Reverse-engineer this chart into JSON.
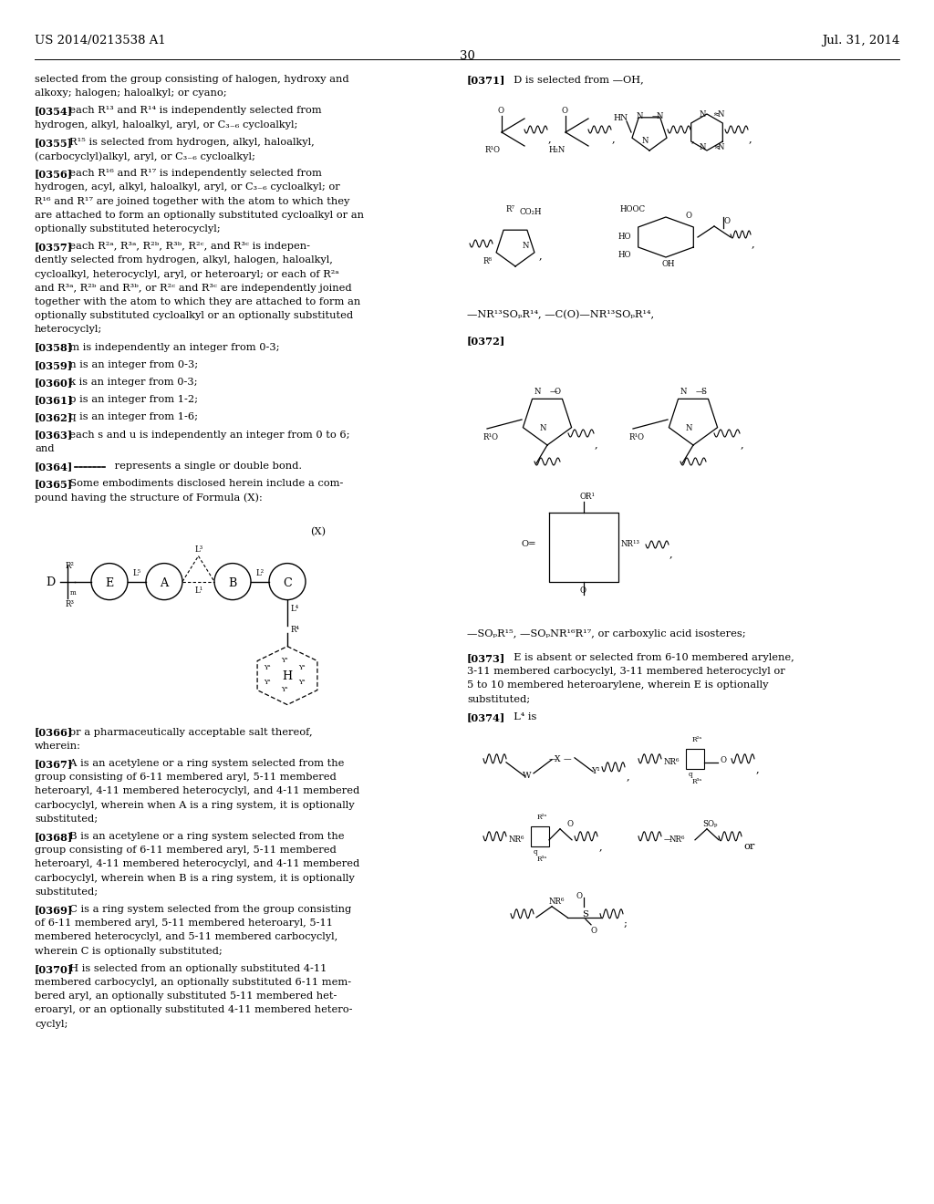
{
  "page_header_left": "US 2014/0213538 A1",
  "page_header_right": "Jul. 31, 2014",
  "page_number": "30",
  "background_color": "#ffffff",
  "figsize": [
    10.24,
    13.2
  ],
  "dpi": 100
}
